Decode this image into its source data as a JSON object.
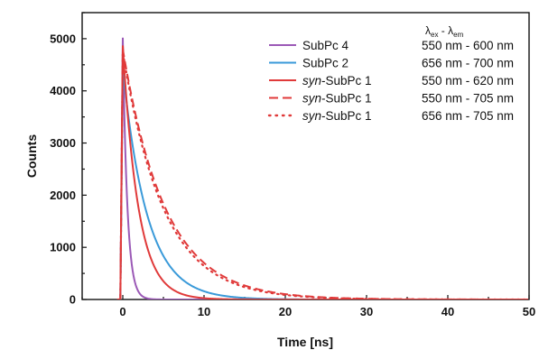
{
  "chart_data": {
    "type": "line",
    "title": "",
    "xlabel": "Time [ns]",
    "ylabel": "Counts",
    "xlim": [
      -5,
      50
    ],
    "ylim": [
      0,
      5500
    ],
    "x_ticks": [
      0,
      10,
      20,
      30,
      40,
      50
    ],
    "y_ticks": [
      0,
      1000,
      2000,
      3000,
      4000,
      5000
    ],
    "grid": false,
    "legend_position": "top-right",
    "legend_header": {
      "lambda": "λ",
      "ex": "ex",
      "dash": " - ",
      "em": "em"
    },
    "series": [
      {
        "name_prefix": "",
        "name_main": "SubPc 4",
        "wavelengths": "550 nm - 600 nm",
        "color": "#9b59b6",
        "dash": "solid",
        "peak": 5020,
        "tau": 0.55,
        "x": [
          -0.5,
          0,
          0.5,
          1,
          1.5,
          2,
          3,
          4,
          5,
          10,
          50
        ],
        "y": [
          0,
          5020,
          2090,
          830,
          330,
          130,
          20,
          3,
          0,
          0,
          0
        ]
      },
      {
        "name_prefix": "",
        "name_main": "SubPc 2",
        "wavelengths": "656 nm - 700 nm",
        "color": "#3a9ad9",
        "dash": "solid",
        "peak": 4420,
        "tau": 3.0,
        "x": [
          -0.5,
          0,
          2,
          4,
          6,
          8,
          10,
          12,
          15,
          20,
          50
        ],
        "y": [
          0,
          4420,
          2270,
          1165,
          600,
          308,
          158,
          81,
          29,
          6,
          0
        ]
      },
      {
        "name_prefix": "syn",
        "name_main": "-SubPc 1",
        "wavelengths": "550 nm - 620 nm",
        "color": "#e03a3a",
        "dash": "solid",
        "peak": 4870,
        "tau": 1.9,
        "x": [
          -0.5,
          0,
          2,
          4,
          6,
          8,
          10,
          12,
          50
        ],
        "y": [
          0,
          4870,
          1700,
          593,
          207,
          72,
          25,
          9,
          0
        ]
      },
      {
        "name_prefix": "syn",
        "name_main": "-SubPc 1",
        "wavelengths": "550 nm - 705 nm",
        "color": "#e03a3a",
        "dash": "dash",
        "peak": 4800,
        "tau": 5.2,
        "x": [
          -0.5,
          0,
          5,
          10,
          15,
          20,
          25,
          30,
          35,
          50
        ],
        "y": [
          0,
          4800,
          1840,
          705,
          270,
          103,
          40,
          15,
          6,
          0
        ]
      },
      {
        "name_prefix": "syn",
        "name_main": "-SubPc 1",
        "wavelengths": "656 nm - 705 nm",
        "color": "#e03a3a",
        "dash": "dot",
        "peak": 4750,
        "tau": 5.0,
        "x": [
          -0.5,
          0,
          5,
          10,
          15,
          20,
          25,
          30,
          35,
          50
        ],
        "y": [
          0,
          4750,
          1750,
          643,
          237,
          87,
          32,
          12,
          4,
          0
        ]
      }
    ]
  }
}
